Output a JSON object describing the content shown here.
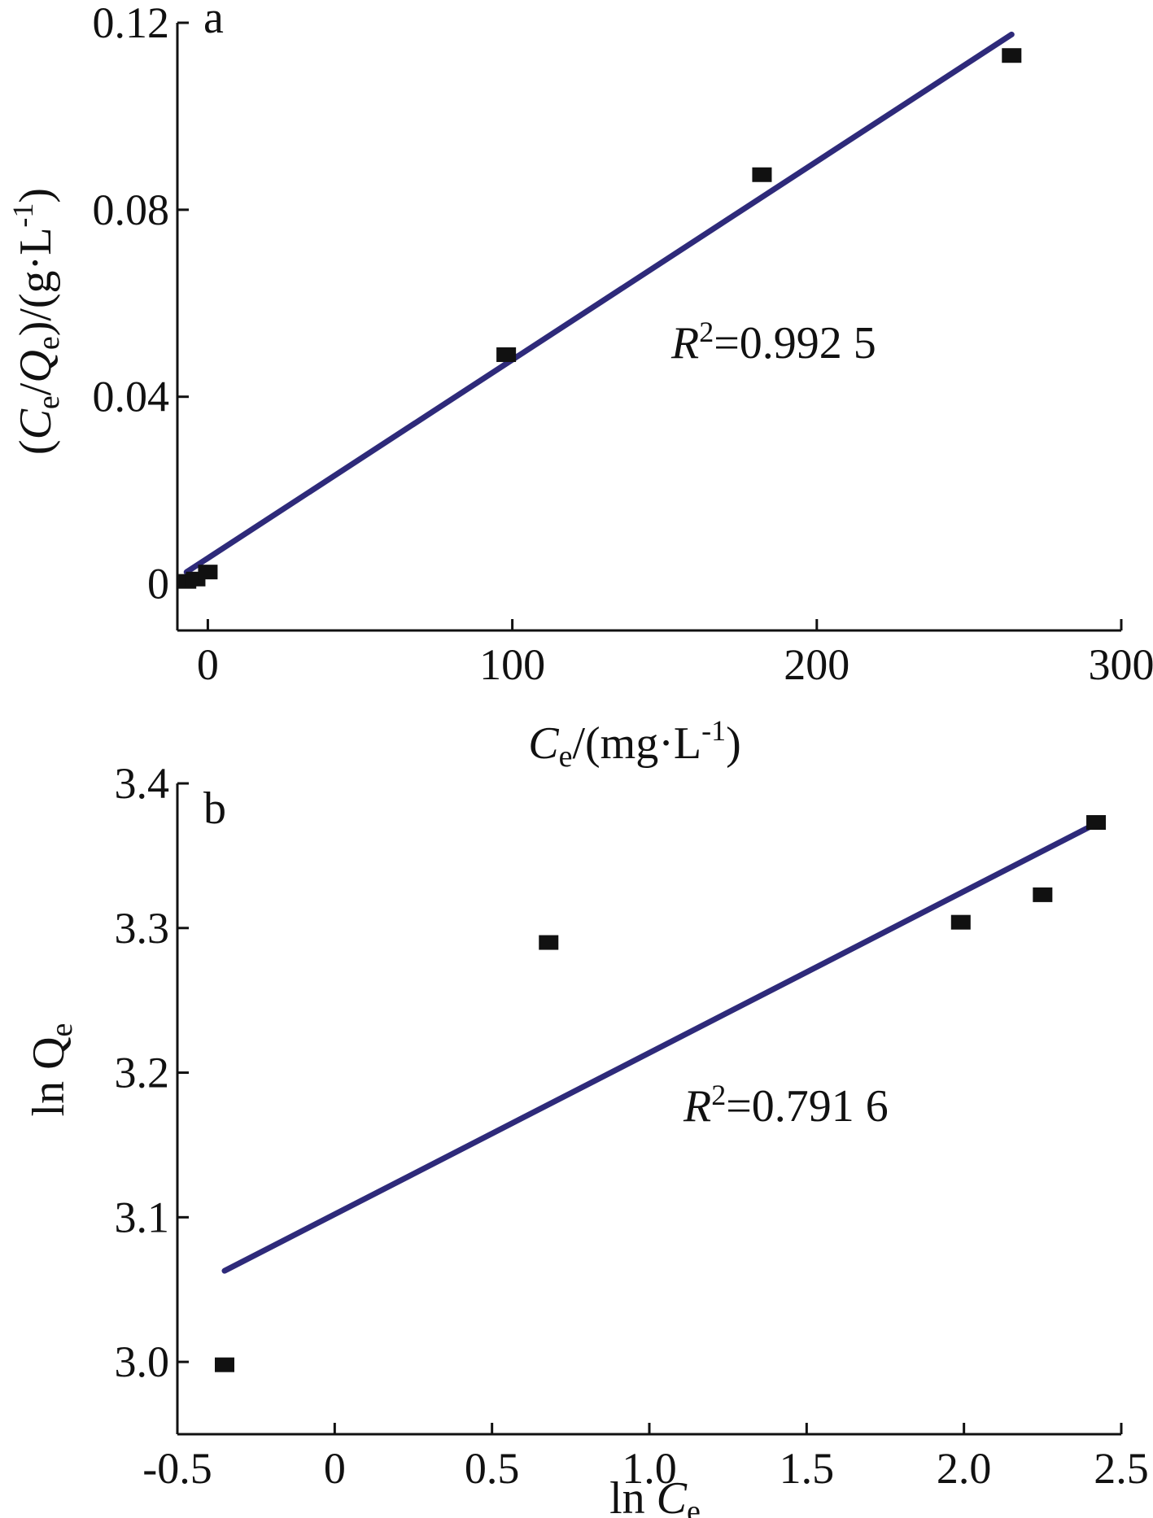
{
  "chart_data": [
    {
      "type": "scatter",
      "panel_label": "a",
      "xlabel_parts": [
        "C",
        "e",
        "/(mg·L",
        "-1",
        ")"
      ],
      "ylabel_parts": [
        "(",
        "C",
        "e",
        "/",
        "Q",
        "e",
        ")/(g·L",
        "-1",
        ")"
      ],
      "xlim": [
        -10,
        300
      ],
      "ylim": [
        -0.01,
        0.12
      ],
      "xticks": [
        0,
        100,
        200,
        300
      ],
      "xtick_labels": [
        "0",
        "100",
        "200",
        "300"
      ],
      "yticks": [
        0,
        0.04,
        0.08,
        0.12
      ],
      "ytick_labels": [
        "0",
        "0.04",
        "0.08",
        "0.12"
      ],
      "grid": false,
      "series": [
        {
          "x": [
            -7,
            -4,
            0,
            98,
            182,
            264
          ],
          "y": [
            0.0005,
            0.001,
            0.0025,
            0.049,
            0.0875,
            0.113
          ],
          "marker": "square",
          "color": "#111111"
        }
      ],
      "fit_line": {
        "x": [
          -7,
          264
        ],
        "y": [
          0.0025,
          0.1175
        ],
        "color": "#2e2a7a"
      },
      "annotation": {
        "parts": [
          "R",
          "2",
          "=0.992 5"
        ]
      }
    },
    {
      "type": "scatter",
      "panel_label": "b",
      "xlabel_parts": [
        "ln ",
        "C",
        "e"
      ],
      "ylabel_parts": [
        "ln Q",
        "e"
      ],
      "xlim": [
        -0.5,
        2.5
      ],
      "ylim": [
        2.95,
        3.4
      ],
      "xticks": [
        -0.5,
        0,
        0.5,
        1.0,
        1.5,
        2.0,
        2.5
      ],
      "xtick_labels": [
        "-0.5",
        "0",
        "0.5",
        "1.0",
        "1.5",
        "2.0",
        "2.5"
      ],
      "yticks": [
        3.0,
        3.1,
        3.2,
        3.3,
        3.4
      ],
      "ytick_labels": [
        "3.0",
        "3.1",
        "3.2",
        "3.3",
        "3.4"
      ],
      "grid": false,
      "series": [
        {
          "x": [
            -0.35,
            0.68,
            1.99,
            2.25,
            2.42
          ],
          "y": [
            2.998,
            3.29,
            3.304,
            3.323,
            3.373
          ],
          "marker": "square",
          "color": "#111111"
        }
      ],
      "fit_line": {
        "x": [
          -0.35,
          2.4
        ],
        "y": [
          3.063,
          3.37
        ],
        "color": "#2e2a7a"
      },
      "annotation": {
        "parts": [
          "R",
          "2",
          "=0.791 6"
        ]
      }
    }
  ]
}
